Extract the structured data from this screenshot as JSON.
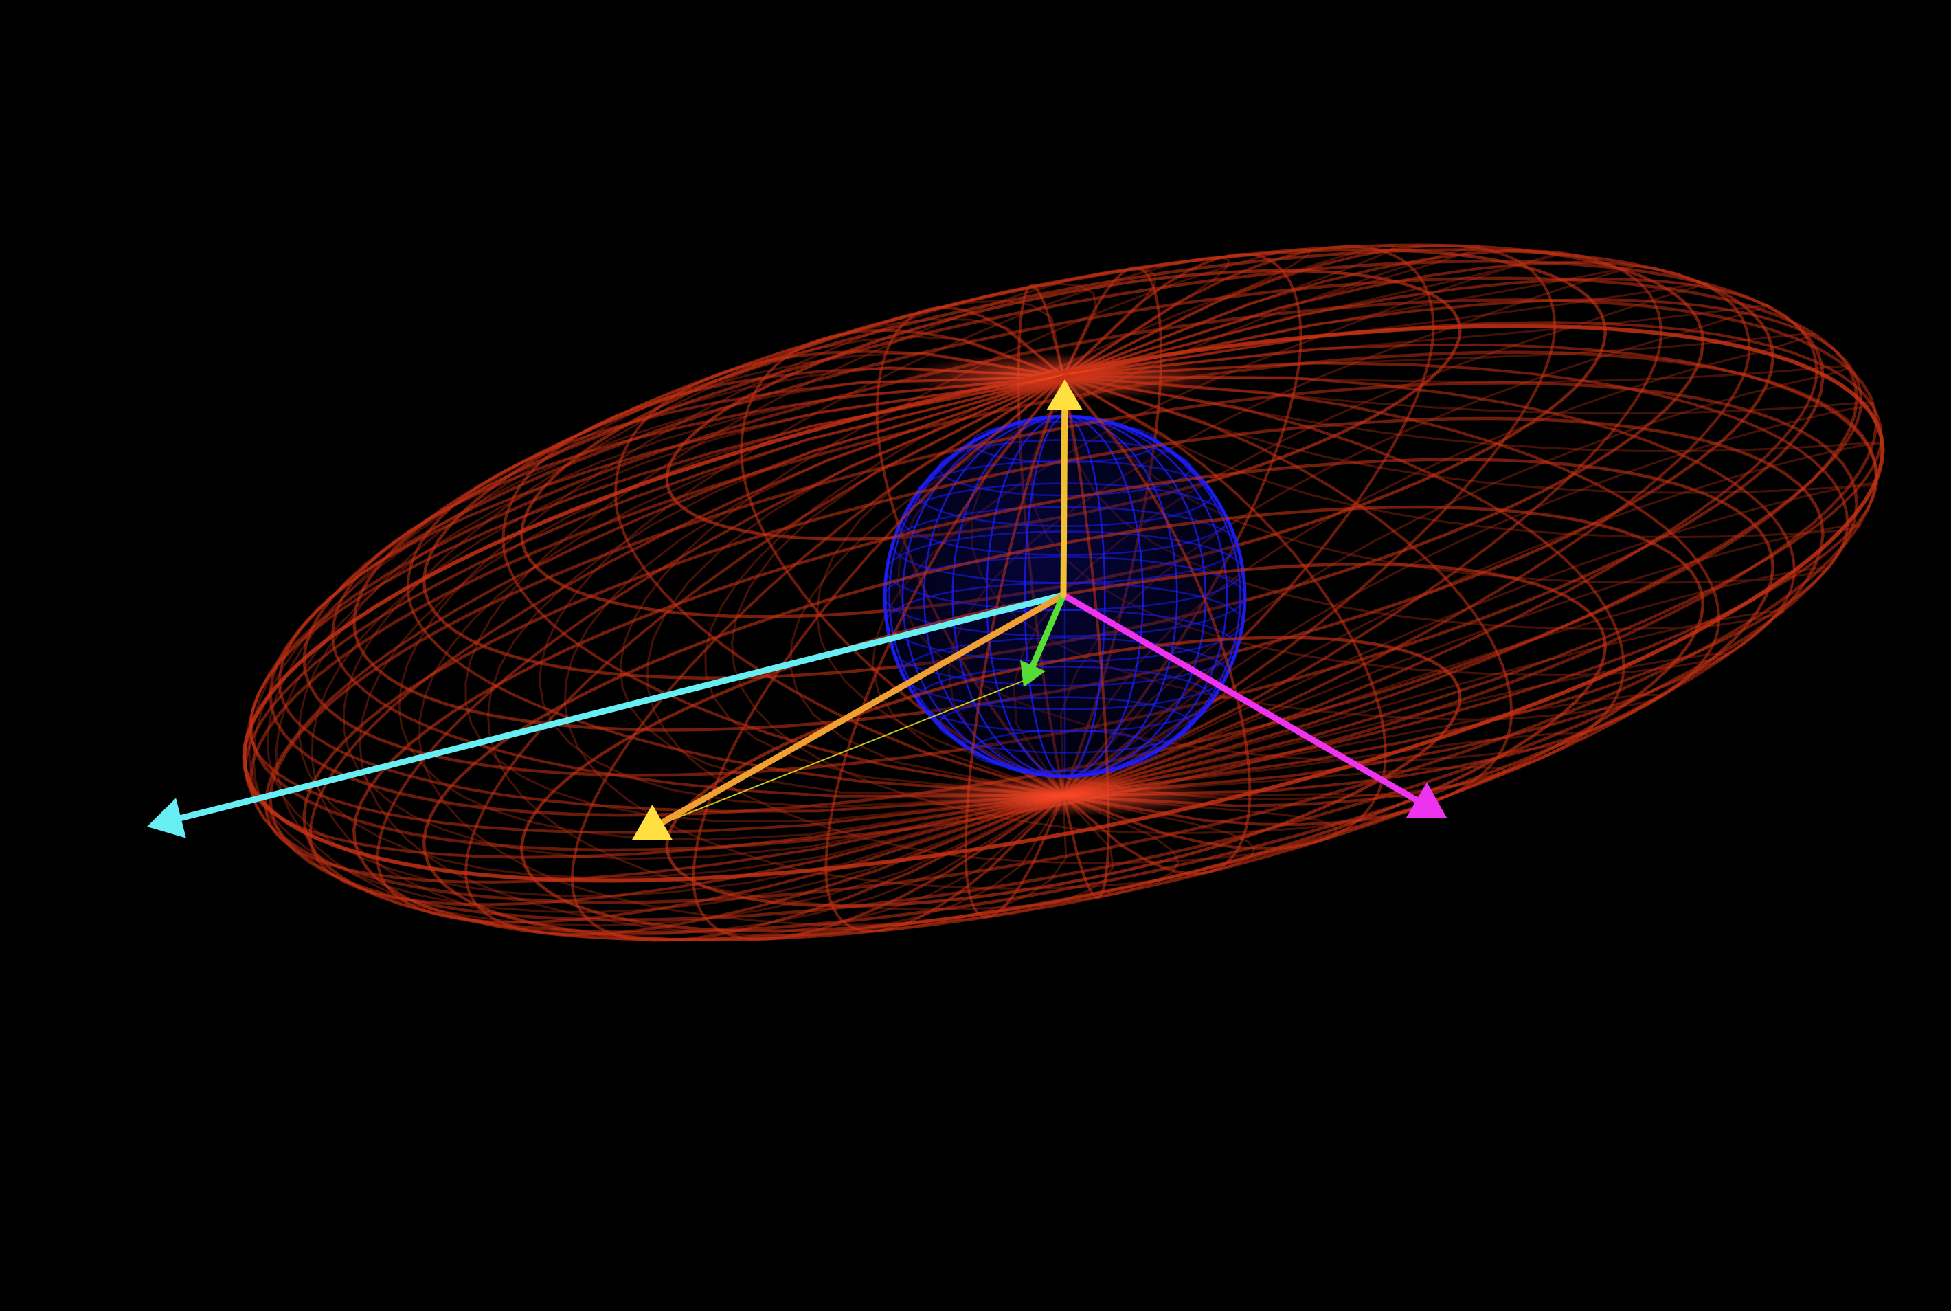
{
  "scene": {
    "background": "#000000",
    "ellipsoid": {
      "color": "#c83214",
      "style": "wireframe"
    },
    "sphere": {
      "color": "#1e1eff",
      "style": "wireframe"
    },
    "vectors": [
      {
        "id": "cyan-vector",
        "color": "#66eef2",
        "head": "cone"
      },
      {
        "id": "orange-vector",
        "color": "#f0a030",
        "head": "cone",
        "head_color": "#ffe040"
      },
      {
        "id": "magenta-vector",
        "color": "#ee33ee",
        "head": "cone"
      },
      {
        "id": "green-vector",
        "color": "#55dd33",
        "head": "cone"
      },
      {
        "id": "vertical-vector",
        "color": "#f2c030",
        "head": "cone",
        "head_color": "#ffe040"
      }
    ],
    "thin_line": {
      "color": "#dddd22"
    }
  }
}
